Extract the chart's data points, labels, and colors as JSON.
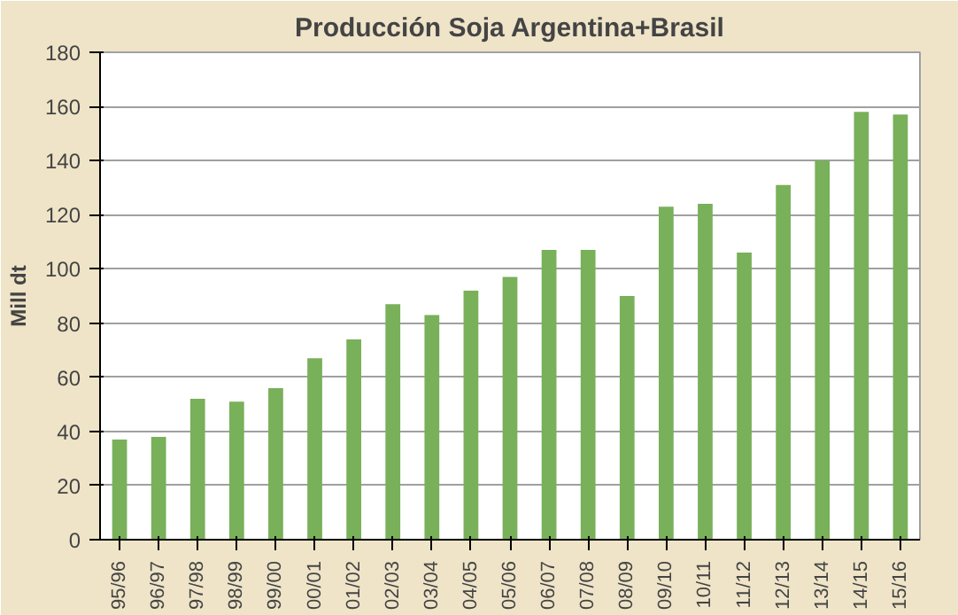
{
  "chart_data": {
    "type": "bar",
    "title": "Producción Soja Argentina+Brasil",
    "ylabel": "Mill dt",
    "categories": [
      "95/96",
      "96/97",
      "97/98",
      "98/99",
      "99/00",
      "00/01",
      "01/02",
      "02/03",
      "03/04",
      "04/05",
      "05/06",
      "06/07",
      "07/08",
      "08/09",
      "09/10",
      "10/11",
      "11/12",
      "12/13",
      "13/14",
      "14/15",
      "15/16"
    ],
    "values": [
      37,
      38,
      52,
      51,
      56,
      67,
      74,
      87,
      83,
      92,
      97,
      107,
      107,
      90,
      123,
      124,
      106,
      131,
      140,
      158,
      157
    ],
    "color": "#79b05a",
    "ylim": [
      0,
      180
    ],
    "yticks": [
      0,
      20,
      40,
      60,
      80,
      100,
      120,
      140,
      160,
      180
    ],
    "grid": "y"
  }
}
